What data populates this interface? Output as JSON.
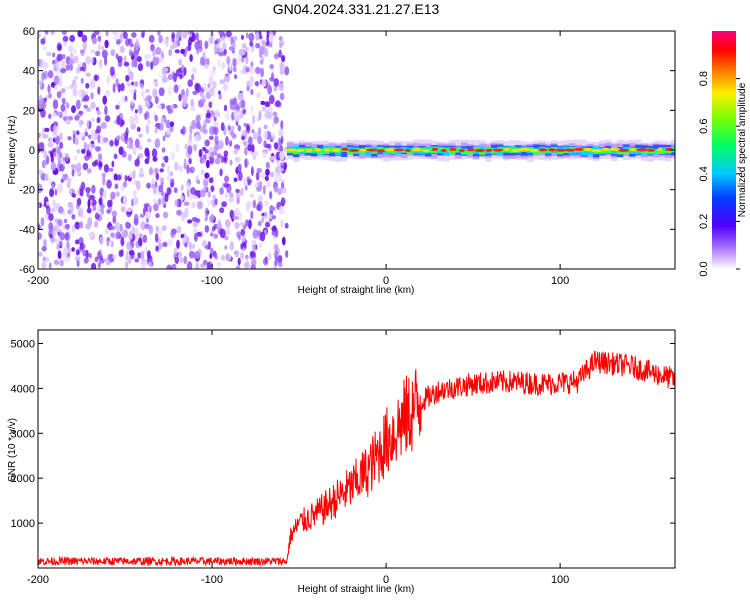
{
  "title": "GN04.2024.331.21.27.E13",
  "chart_data": [
    {
      "type": "heatmap",
      "xlabel": "Height of straight line (km)",
      "ylabel": "Frequency (Hz)",
      "xlim": [
        -200,
        166
      ],
      "ylim": [
        -60,
        60
      ],
      "xticks": [
        -200,
        -100,
        0,
        100
      ],
      "yticks": [
        -60,
        -40,
        -20,
        0,
        20,
        40,
        60
      ],
      "colorbar": {
        "label": "Normalized spectral amplitude",
        "range": [
          0,
          1
        ],
        "ticks": [
          0.0,
          0.2,
          0.4,
          0.6,
          0.8
        ]
      },
      "regions": [
        {
          "x_range": [
            -200,
            -57
          ],
          "y_range": [
            -60,
            60
          ],
          "amplitude": 0.1,
          "description_shape": "noise"
        },
        {
          "x_range": [
            -57,
            166
          ],
          "y_center": 0,
          "amplitude_peak": 1.0,
          "shape": "narrow band"
        }
      ]
    },
    {
      "type": "line",
      "xlabel": "Height of straight line (km)",
      "ylabel": "SNR (10 * v/v)",
      "xlim": [
        -200,
        166
      ],
      "ylim": [
        0,
        5300
      ],
      "xticks": [
        -200,
        -100,
        0,
        100
      ],
      "yticks": [
        1000,
        2000,
        3000,
        4000,
        5000
      ],
      "color": "#ff0000",
      "x": [
        -200,
        -150,
        -100,
        -57,
        -55,
        -50,
        -40,
        -30,
        -20,
        -10,
        0,
        10,
        20,
        30,
        50,
        70,
        90,
        110,
        120,
        140,
        166
      ],
      "y": [
        150,
        150,
        150,
        150,
        700,
        1000,
        1200,
        1500,
        1800,
        2200,
        2800,
        3300,
        3700,
        3950,
        4100,
        4150,
        4100,
        4150,
        4600,
        4500,
        4200
      ]
    }
  ]
}
